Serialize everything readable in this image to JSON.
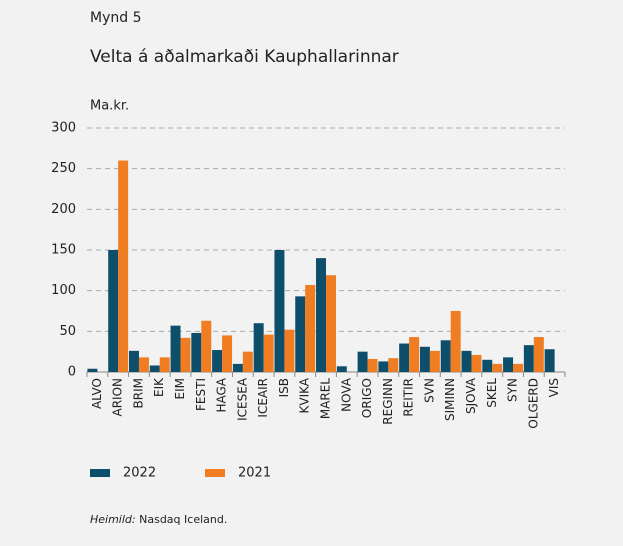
{
  "chart_data": {
    "type": "bar",
    "figure_label": "Mynd 5",
    "title": "Velta á aðalmarkaði Kauphallarinnar",
    "y_label": "Ma.kr.",
    "categories": [
      "ALVO",
      "ARION",
      "BRIM",
      "EIK",
      "EIM",
      "FESTI",
      "HAGA",
      "ICESEA",
      "ICEAIR",
      "ISB",
      "KVIKA",
      "MAREL",
      "NOVA",
      "ORIGO",
      "REGINN",
      "REITIR",
      "SVN",
      "SIMINN",
      "SJOVA",
      "SKEL",
      "SYN",
      "OLGERD",
      "VIS"
    ],
    "series": [
      {
        "name": "2022",
        "color": "#0d4f6b",
        "values": [
          4,
          150,
          26,
          8,
          57,
          48,
          27,
          10,
          60,
          150,
          93,
          140,
          7,
          25,
          13,
          35,
          31,
          39,
          26,
          15,
          18,
          33,
          28
        ]
      },
      {
        "name": "2021",
        "color": "#f07d22",
        "values": [
          0,
          260,
          18,
          18,
          42,
          63,
          45,
          25,
          46,
          52,
          107,
          119,
          0,
          16,
          17,
          43,
          26,
          75,
          21,
          10,
          10,
          43,
          0
        ]
      }
    ],
    "ylim": [
      0,
      300
    ],
    "yticks": [
      0,
      50,
      100,
      150,
      200,
      250,
      300
    ],
    "grid": true,
    "source_label": "Heimild:",
    "source_text": "Nasdaq Iceland."
  }
}
